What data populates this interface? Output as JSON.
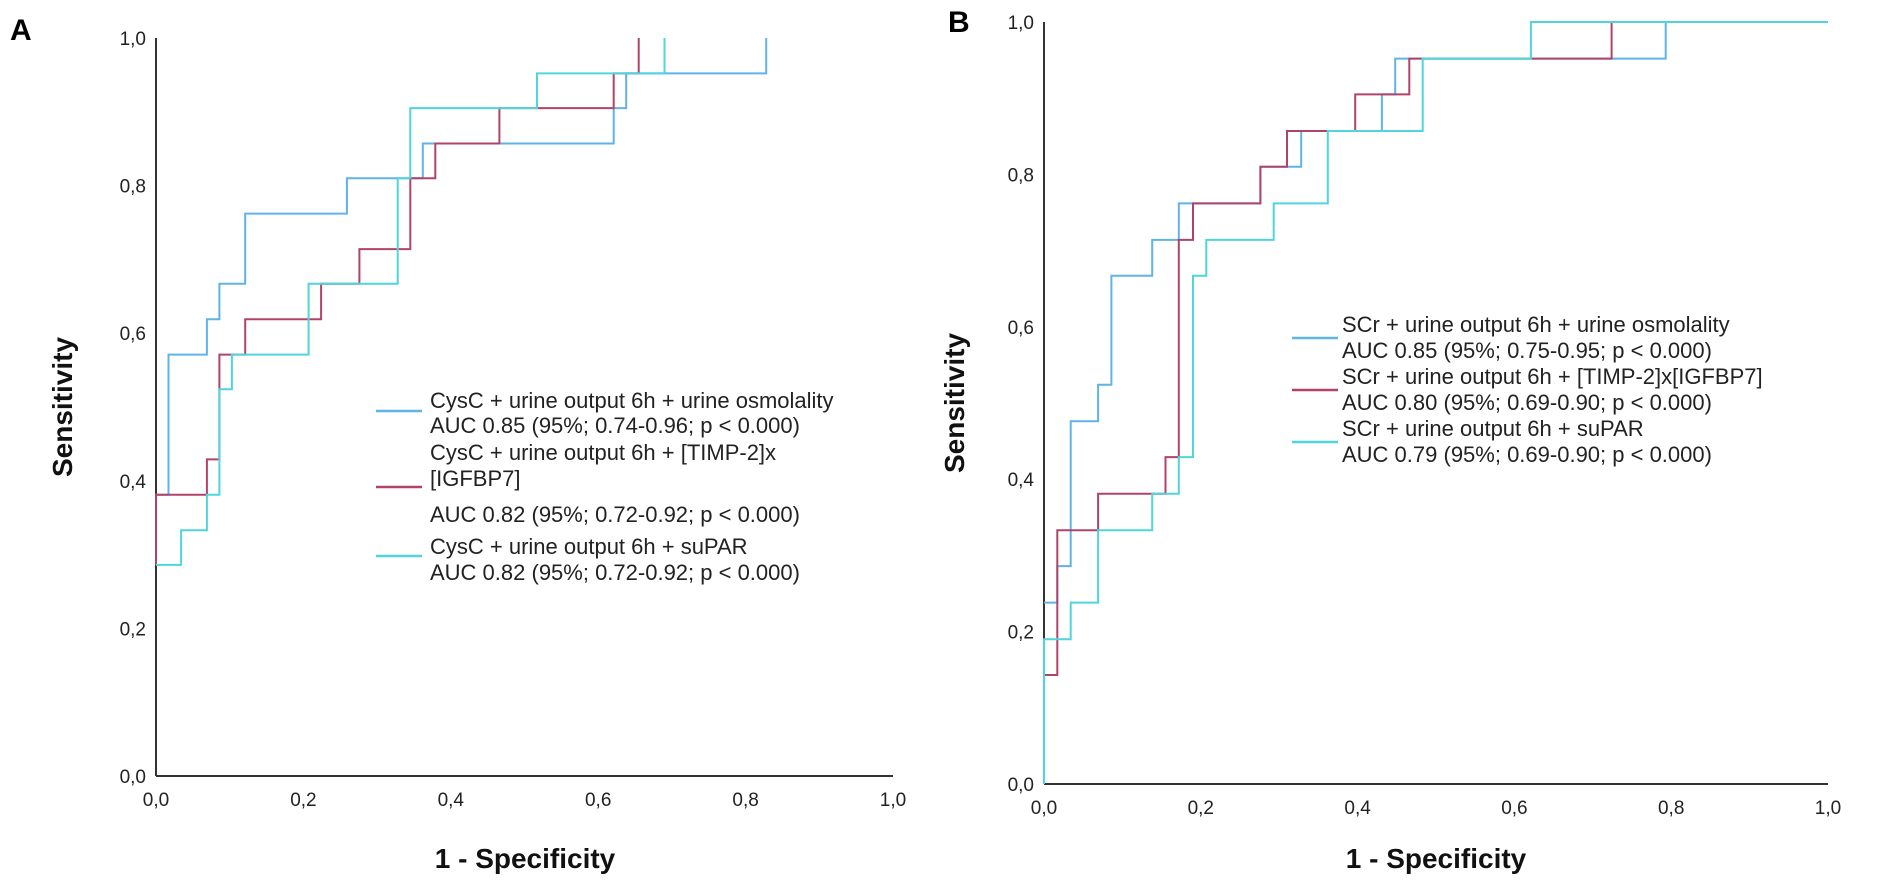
{
  "figure_labels": [
    "A",
    "B"
  ],
  "colors": {
    "blue": "#5fb3e6",
    "red": "#b0436a",
    "cyan": "#4fd6dc",
    "axis": "#333333"
  },
  "chart_data": [
    {
      "type": "line",
      "panel": "A",
      "title": "",
      "xlabel": "1 - Specificity",
      "ylabel": "Sensitivity",
      "xlim": [
        0,
        1
      ],
      "ylim": [
        0,
        1
      ],
      "xticks": [
        "0,0",
        "0,2",
        "0,4",
        "0,6",
        "0,8",
        "1,0"
      ],
      "yticks": [
        "0,0",
        "0,2",
        "0,4",
        "0,6",
        "0,8",
        "1,0"
      ],
      "legend_position": "center-right",
      "series": [
        {
          "name": "CysC + urine output 6h + urine osmolality",
          "auc_text": "AUC 0.85 (95%; 0.74-0.96; p < 0.000)",
          "color": "#5fb3e6",
          "x": [
            0.0,
            0.0,
            0.017,
            0.017,
            0.069,
            0.069,
            0.086,
            0.086,
            0.121,
            0.121,
            0.259,
            0.259,
            0.345,
            0.345,
            0.362,
            0.362,
            0.517,
            0.517,
            0.621,
            0.621,
            0.638,
            0.638,
            0.828,
            0.828
          ],
          "y": [
            0.286,
            0.381,
            0.381,
            0.571,
            0.571,
            0.619,
            0.619,
            0.667,
            0.667,
            0.762,
            0.762,
            0.81,
            0.81,
            0.81,
            0.81,
            0.857,
            0.857,
            0.857,
            0.857,
            0.905,
            0.905,
            0.952,
            0.952,
            1.0
          ]
        },
        {
          "name": "CysC + urine output  6h + [TIMP-2]x [IGFBP7]",
          "auc_text": "AUC 0.82 (95%; 0.72-0.92; p < 0.000)",
          "color": "#b0436a",
          "x": [
            0.0,
            0.0,
            0.069,
            0.069,
            0.086,
            0.086,
            0.121,
            0.121,
            0.224,
            0.224,
            0.276,
            0.276,
            0.345,
            0.345,
            0.379,
            0.379,
            0.466,
            0.466,
            0.621,
            0.621,
            0.655,
            0.655
          ],
          "y": [
            0.286,
            0.381,
            0.381,
            0.429,
            0.429,
            0.571,
            0.571,
            0.619,
            0.619,
            0.667,
            0.667,
            0.714,
            0.714,
            0.81,
            0.81,
            0.857,
            0.857,
            0.905,
            0.905,
            0.952,
            0.952,
            1.0
          ]
        },
        {
          "name": "CysC + urine output 6h + suPAR",
          "auc_text": "AUC 0.82 (95%; 0.72-0.92; p < 0.000)",
          "color": "#4fd6dc",
          "x": [
            0.0,
            0.0,
            0.034,
            0.034,
            0.069,
            0.069,
            0.086,
            0.086,
            0.103,
            0.103,
            0.121,
            0.121,
            0.207,
            0.207,
            0.328,
            0.328,
            0.345,
            0.345,
            0.517,
            0.517,
            0.69,
            0.69
          ],
          "y": [
            0.286,
            0.286,
            0.286,
            0.333,
            0.333,
            0.381,
            0.381,
            0.524,
            0.524,
            0.571,
            0.571,
            0.571,
            0.571,
            0.667,
            0.667,
            0.81,
            0.81,
            0.905,
            0.905,
            0.952,
            0.952,
            1.0
          ]
        }
      ]
    },
    {
      "type": "line",
      "panel": "B",
      "title": "",
      "xlabel": "1 - Specificity",
      "ylabel": "Sensitivity",
      "xlim": [
        0,
        1
      ],
      "ylim": [
        0,
        1
      ],
      "xticks": [
        "0,0",
        "0,2",
        "0,4",
        "0,6",
        "0,8",
        "1,0"
      ],
      "yticks": [
        "0,0",
        "0,2",
        "0,4",
        "0,6",
        "0,8",
        "1,0"
      ],
      "legend_position": "center-right",
      "series": [
        {
          "name": "SCr + urine output 6h + urine osmolality",
          "auc_text": "AUC 0.85 (95%; 0.75-0.95; p < 0.000)",
          "color": "#5fb3e6",
          "x": [
            0.0,
            0.0,
            0.017,
            0.017,
            0.034,
            0.034,
            0.069,
            0.069,
            0.086,
            0.086,
            0.138,
            0.138,
            0.172,
            0.172,
            0.276,
            0.276,
            0.328,
            0.328,
            0.431,
            0.431,
            0.448,
            0.448,
            0.793,
            0.793,
            1.0
          ],
          "y": [
            0.238,
            0.238,
            0.238,
            0.286,
            0.286,
            0.476,
            0.476,
            0.524,
            0.524,
            0.667,
            0.667,
            0.714,
            0.714,
            0.762,
            0.762,
            0.81,
            0.81,
            0.857,
            0.857,
            0.905,
            0.905,
            0.952,
            0.952,
            1.0,
            1.0
          ]
        },
        {
          "name": "SCr + urine output  6h + [TIMP-2]x[IGFBP7]",
          "auc_text": "AUC 0.80 (95%; 0.69-0.90; p < 0.000)",
          "color": "#b0436a",
          "x": [
            0.0,
            0.0,
            0.017,
            0.017,
            0.069,
            0.069,
            0.155,
            0.155,
            0.172,
            0.172,
            0.19,
            0.19,
            0.276,
            0.276,
            0.31,
            0.31,
            0.397,
            0.397,
            0.466,
            0.466,
            0.534,
            0.534,
            0.724,
            0.724,
            1.0
          ],
          "y": [
            0.143,
            0.143,
            0.143,
            0.333,
            0.333,
            0.381,
            0.381,
            0.429,
            0.429,
            0.714,
            0.714,
            0.762,
            0.762,
            0.81,
            0.81,
            0.857,
            0.857,
            0.905,
            0.905,
            0.952,
            0.952,
            0.952,
            0.952,
            1.0,
            1.0
          ]
        },
        {
          "name": "SCr + urine output 6h + suPAR",
          "auc_text": "AUC 0.79 (95%; 0.69-0.90; p < 0.000)",
          "color": "#4fd6dc",
          "x": [
            0.0,
            0.0,
            0.034,
            0.034,
            0.069,
            0.069,
            0.138,
            0.138,
            0.172,
            0.172,
            0.19,
            0.19,
            0.207,
            0.207,
            0.293,
            0.293,
            0.362,
            0.362,
            0.483,
            0.483,
            0.621,
            0.621,
            1.0
          ],
          "y": [
            0.0,
            0.19,
            0.19,
            0.238,
            0.238,
            0.333,
            0.333,
            0.381,
            0.381,
            0.429,
            0.429,
            0.667,
            0.667,
            0.714,
            0.714,
            0.762,
            0.762,
            0.857,
            0.857,
            0.952,
            0.952,
            1.0,
            1.0
          ]
        }
      ]
    }
  ]
}
